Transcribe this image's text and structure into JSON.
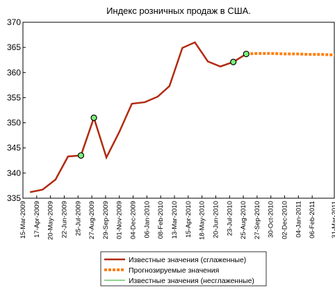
{
  "chart_data": {
    "type": "line",
    "title": "Индекс розничных продаж в США.",
    "xlim": [
      "2009-03-15",
      "2011-03-31"
    ],
    "xticks": [
      {
        "value": "2009-03-15",
        "label": "15-Mar-2009"
      },
      {
        "value": "2009-04-17",
        "label": "17-Apr-2009"
      },
      {
        "value": "2009-05-20",
        "label": "20-May-2009"
      },
      {
        "value": "2009-06-22",
        "label": "22-Jun-2009"
      },
      {
        "value": "2009-07-25",
        "label": "25-Jul-2009"
      },
      {
        "value": "2009-08-27",
        "label": "27-Aug-2009"
      },
      {
        "value": "2009-09-29",
        "label": "29-Sep-2009"
      },
      {
        "value": "2009-11-01",
        "label": "01-Nov-2009"
      },
      {
        "value": "2009-12-04",
        "label": "04-Dec-2009"
      },
      {
        "value": "2010-01-06",
        "label": "06-Jan-2010"
      },
      {
        "value": "2010-02-08",
        "label": "08-Feb-2010"
      },
      {
        "value": "2010-03-13",
        "label": "13-Mar-2010"
      },
      {
        "value": "2010-04-15",
        "label": "15-Apr-2010"
      },
      {
        "value": "2010-05-18",
        "label": "18-May-2010"
      },
      {
        "value": "2010-06-20",
        "label": "20-Jun-2010"
      },
      {
        "value": "2010-07-23",
        "label": "23-Jul-2010"
      },
      {
        "value": "2010-08-25",
        "label": "25-Aug-2010"
      },
      {
        "value": "2010-09-27",
        "label": "27-Sep-2010"
      },
      {
        "value": "2010-10-30",
        "label": "30-Oct-2010"
      },
      {
        "value": "2010-12-02",
        "label": "02-Dec-2010"
      },
      {
        "value": "2011-01-04",
        "label": "04-Jan-2011"
      },
      {
        "value": "2011-02-06",
        "label": "06-Feb-2011"
      },
      {
        "value": "2011-03-31",
        "label": "31-Mar-2011"
      }
    ],
    "ylim": [
      335,
      370
    ],
    "yticks": [
      335,
      340,
      345,
      350,
      355,
      360,
      365,
      370
    ],
    "series": [
      {
        "name": "Известные значения (несглаженные)",
        "color": "#22aa22",
        "width": 1,
        "x": [
          "2009-04-01",
          "2009-05-01",
          "2009-06-01",
          "2009-07-01",
          "2009-08-01",
          "2009-09-01",
          "2009-10-01",
          "2009-11-01",
          "2009-12-01",
          "2010-01-01",
          "2010-02-01",
          "2010-03-01",
          "2010-04-01",
          "2010-05-01",
          "2010-06-01",
          "2010-07-01",
          "2010-08-01",
          "2010-09-01"
        ],
        "values": [
          336.2,
          336.7,
          338.7,
          343.3,
          343.5,
          351.0,
          343.1,
          348.2,
          353.8,
          354.1,
          355.2,
          357.3,
          364.9,
          366.0,
          362.2,
          361.2,
          362.1,
          363.7
        ]
      },
      {
        "name": "Известные значения (сглаженные)",
        "color": "#b22a10",
        "width": 2.5,
        "x": [
          "2009-04-01",
          "2009-05-01",
          "2009-06-01",
          "2009-07-01",
          "2009-08-01",
          "2009-09-01",
          "2009-10-01",
          "2009-11-01",
          "2009-12-01",
          "2010-01-01",
          "2010-02-01",
          "2010-03-01",
          "2010-04-01",
          "2010-05-01",
          "2010-06-01",
          "2010-07-01",
          "2010-08-01",
          "2010-09-01"
        ],
        "values": [
          336.2,
          336.7,
          338.7,
          343.3,
          343.5,
          351.0,
          343.1,
          348.2,
          353.8,
          354.1,
          355.2,
          357.3,
          364.9,
          366.0,
          362.2,
          361.2,
          362.1,
          363.7
        ]
      },
      {
        "name": "Прогнозируемые значения",
        "color": "#ff7f0e",
        "width": 4,
        "dash": true,
        "x": [
          "2010-09-01",
          "2010-10-01",
          "2010-11-01",
          "2010-12-01",
          "2011-01-01",
          "2011-02-01",
          "2011-03-01",
          "2011-03-31"
        ],
        "values": [
          363.7,
          363.8,
          363.8,
          363.7,
          363.7,
          363.6,
          363.6,
          363.5
        ]
      }
    ],
    "highlight_points": {
      "color": "#7cf07c",
      "x": [
        "2009-08-01",
        "2009-09-01",
        "2010-08-01",
        "2010-09-01"
      ],
      "values": [
        343.5,
        351.0,
        362.1,
        363.7
      ]
    },
    "legend_order": [
      1,
      2,
      0
    ]
  }
}
